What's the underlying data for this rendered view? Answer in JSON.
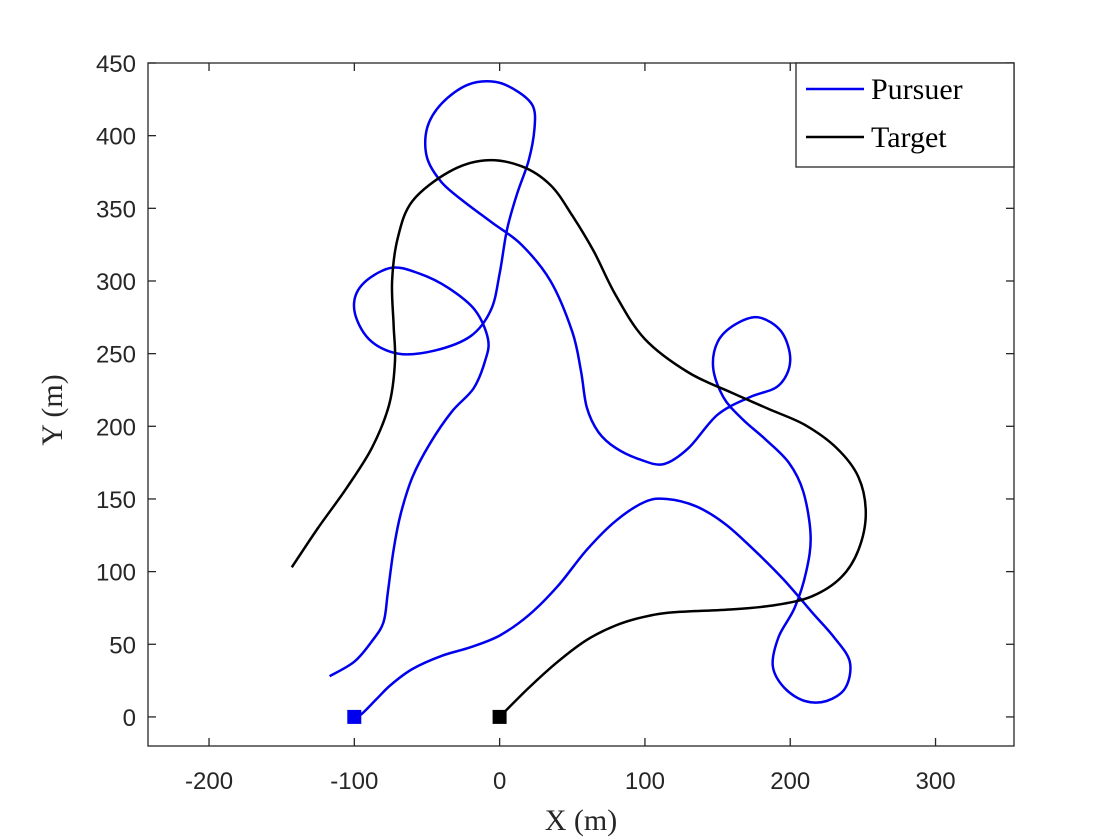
{
  "chart_data": {
    "type": "line",
    "xlabel": "X (m)",
    "ylabel": "Y (m)",
    "xlim": [
      -242,
      354
    ],
    "ylim": [
      -20,
      450
    ],
    "xticks": [
      "-200",
      "-100",
      "0",
      "100",
      "200",
      "300"
    ],
    "yticks": [
      "0",
      "50",
      "100",
      "150",
      "200",
      "250",
      "300",
      "350",
      "400",
      "450"
    ],
    "grid": false,
    "legend_position": "top-right",
    "colors": {
      "pursuer": "#0000ee",
      "target": "#000000",
      "axis": "#262626"
    },
    "series": [
      {
        "name": "Pursuer",
        "color": "#0000ee",
        "start_marker": [
          -100,
          0
        ],
        "points": [
          [
            -100,
            0
          ],
          [
            -95,
            2
          ],
          [
            -85,
            12
          ],
          [
            -75,
            22
          ],
          [
            -60,
            33
          ],
          [
            -40,
            42
          ],
          [
            -20,
            48
          ],
          [
            0,
            56
          ],
          [
            20,
            70
          ],
          [
            40,
            90
          ],
          [
            60,
            115
          ],
          [
            80,
            135
          ],
          [
            100,
            148
          ],
          [
            115,
            150
          ],
          [
            135,
            145
          ],
          [
            155,
            133
          ],
          [
            175,
            115
          ],
          [
            195,
            95
          ],
          [
            215,
            72
          ],
          [
            230,
            55
          ],
          [
            241,
            38
          ],
          [
            238,
            20
          ],
          [
            225,
            11
          ],
          [
            210,
            11
          ],
          [
            196,
            20
          ],
          [
            188,
            35
          ],
          [
            192,
            55
          ],
          [
            203,
            75
          ],
          [
            211,
            100
          ],
          [
            214,
            125
          ],
          [
            209,
            155
          ],
          [
            199,
            175
          ],
          [
            183,
            191
          ],
          [
            167,
            205
          ],
          [
            154,
            220
          ],
          [
            147,
            240
          ],
          [
            150,
            258
          ],
          [
            162,
            270
          ],
          [
            178,
            275
          ],
          [
            194,
            265
          ],
          [
            200,
            245
          ],
          [
            192,
            228
          ],
          [
            172,
            220
          ],
          [
            150,
            208
          ],
          [
            130,
            185
          ],
          [
            113,
            174
          ],
          [
            97,
            177
          ],
          [
            80,
            185
          ],
          [
            68,
            196
          ],
          [
            60,
            213
          ],
          [
            56,
            238
          ],
          [
            50,
            265
          ],
          [
            35,
            300
          ],
          [
            15,
            325
          ],
          [
            -5,
            340
          ],
          [
            -25,
            355
          ],
          [
            -40,
            368
          ],
          [
            -50,
            385
          ],
          [
            -50,
            405
          ],
          [
            -40,
            422
          ],
          [
            -22,
            435
          ],
          [
            -3,
            437
          ],
          [
            13,
            430
          ],
          [
            23,
            420
          ],
          [
            24,
            405
          ],
          [
            20,
            383
          ],
          [
            12,
            360
          ],
          [
            5,
            335
          ],
          [
            0,
            305
          ],
          [
            -6,
            280
          ],
          [
            -20,
            262
          ],
          [
            -45,
            252
          ],
          [
            -70,
            250
          ],
          [
            -90,
            260
          ],
          [
            -100,
            280
          ],
          [
            -95,
            297
          ],
          [
            -75,
            309
          ],
          [
            -55,
            305
          ],
          [
            -35,
            295
          ],
          [
            -17,
            280
          ],
          [
            -8,
            260
          ],
          [
            -10,
            245
          ],
          [
            -18,
            226
          ],
          [
            -33,
            210
          ],
          [
            -48,
            188
          ],
          [
            -60,
            165
          ],
          [
            -68,
            140
          ],
          [
            -73,
            115
          ],
          [
            -77,
            85
          ],
          [
            -80,
            65
          ],
          [
            -88,
            52
          ],
          [
            -100,
            38
          ],
          [
            -117,
            28
          ]
        ]
      },
      {
        "name": "Target",
        "color": "#000000",
        "start_marker": [
          0,
          0
        ],
        "points": [
          [
            0,
            0
          ],
          [
            20,
            20
          ],
          [
            40,
            38
          ],
          [
            60,
            53
          ],
          [
            80,
            63
          ],
          [
            100,
            69
          ],
          [
            120,
            72
          ],
          [
            160,
            74
          ],
          [
            190,
            77
          ],
          [
            215,
            83
          ],
          [
            235,
            96
          ],
          [
            247,
            115
          ],
          [
            252,
            140
          ],
          [
            247,
            165
          ],
          [
            232,
            185
          ],
          [
            210,
            201
          ],
          [
            185,
            212
          ],
          [
            160,
            223
          ],
          [
            130,
            237
          ],
          [
            100,
            260
          ],
          [
            80,
            290
          ],
          [
            65,
            320
          ],
          [
            50,
            345
          ],
          [
            35,
            366
          ],
          [
            15,
            379
          ],
          [
            -10,
            383
          ],
          [
            -35,
            375
          ],
          [
            -60,
            355
          ],
          [
            -70,
            330
          ],
          [
            -74,
            300
          ],
          [
            -73,
            270
          ],
          [
            -72,
            245
          ],
          [
            -76,
            215
          ],
          [
            -88,
            185
          ],
          [
            -105,
            158
          ],
          [
            -125,
            130
          ],
          [
            -143,
            103
          ]
        ]
      }
    ]
  }
}
